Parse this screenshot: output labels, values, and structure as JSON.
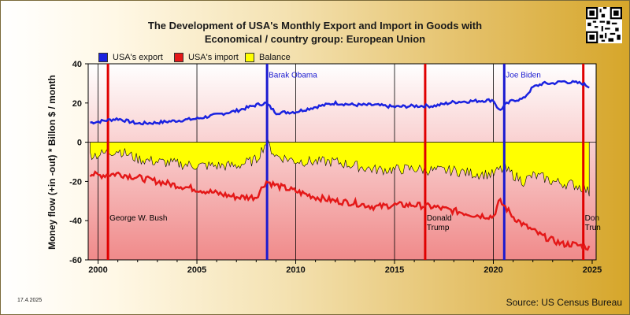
{
  "header": {
    "title_line1": "The Development of USA's Monthly Export and Import in Goods with",
    "title_line2": "Economical / country group: European Union"
  },
  "footer": {
    "date": "17.4.2025",
    "source": "Source: US Census Bureau"
  },
  "colors": {
    "export": "#1a22e0",
    "import": "#e41818",
    "balance": "#ffff00",
    "president_line": "#e00000",
    "president_line_obama": "#1a1ad0"
  },
  "chart_data": {
    "type": "line",
    "ylabel": "Money flow (+in -out) * Billon $ / month",
    "xlim": [
      1999.5,
      2025.2
    ],
    "ylim": [
      -60,
      40
    ],
    "x_ticks": [
      2000,
      2005,
      2010,
      2015,
      2020,
      2025
    ],
    "y_ticks": [
      -60,
      -40,
      -20,
      0,
      20,
      40
    ],
    "x_tick_labels": [
      "2000",
      "2005",
      "2010",
      "2015",
      "2020",
      "2025"
    ],
    "y_tick_labels": [
      "-60",
      "-40",
      "-20",
      "0",
      "20",
      "40"
    ],
    "grid": "vertical lines at 2000, 2005, 2010, 2015, 2020",
    "legend_position": "top-left",
    "legend": [
      {
        "label": "USA's export",
        "color_key": "export"
      },
      {
        "label": "USA's import",
        "color_key": "import"
      },
      {
        "label": "Balance",
        "color_key": "balance"
      }
    ],
    "series": [
      {
        "name": "USA's export",
        "x": [
          1999.6,
          2000,
          2001,
          2002,
          2003,
          2004,
          2005,
          2006,
          2007,
          2008,
          2008.5,
          2009,
          2010,
          2011,
          2012,
          2013,
          2014,
          2015,
          2016,
          2017,
          2018,
          2019,
          2020,
          2020.3,
          2020.6,
          2021,
          2021.5,
          2022,
          2022.5,
          2023,
          2023.5,
          2024,
          2024.5,
          2024.9
        ],
        "y": [
          10,
          10.5,
          12,
          9.5,
          10,
          11,
          12,
          14,
          16,
          19,
          20,
          15,
          15.5,
          18,
          20,
          19,
          19,
          18,
          18.5,
          18.5,
          20.5,
          21,
          21.5,
          16,
          19,
          21.5,
          22,
          28,
          30,
          30,
          31,
          30.5,
          30,
          28
        ]
      },
      {
        "name": "USA's import",
        "x": [
          1999.6,
          2000,
          2001,
          2002,
          2003,
          2004,
          2005,
          2006,
          2007,
          2008,
          2008.5,
          2009,
          2010,
          2011,
          2012,
          2013,
          2014,
          2015,
          2016,
          2017,
          2018,
          2019,
          2020,
          2020.3,
          2020.6,
          2021,
          2021.5,
          2022,
          2022.5,
          2023,
          2023.5,
          2024,
          2024.5,
          2024.9
        ],
        "y": [
          -16,
          -17,
          -16,
          -18,
          -20,
          -22,
          -24,
          -26,
          -28,
          -28,
          -20,
          -22,
          -25,
          -28,
          -30,
          -31,
          -33,
          -32,
          -32,
          -33,
          -35,
          -37,
          -38,
          -30,
          -33,
          -38,
          -42,
          -45,
          -48,
          -50,
          -52,
          -52,
          -53,
          -54
        ]
      },
      {
        "name": "Balance",
        "x": [
          1999.6,
          2000,
          2001,
          2002,
          2003,
          2004,
          2005,
          2006,
          2007,
          2008,
          2008.5,
          2009,
          2010,
          2011,
          2012,
          2013,
          2014,
          2015,
          2016,
          2017,
          2018,
          2019,
          2020,
          2020.3,
          2020.6,
          2021,
          2021.5,
          2022,
          2022.5,
          2023,
          2023.5,
          2024,
          2024.5,
          2024.9
        ],
        "y": [
          -6,
          -6.5,
          -4,
          -8.5,
          -10,
          -11,
          -12,
          -12,
          -12,
          -9,
          0,
          -7,
          -9.5,
          -10,
          -10,
          -12,
          -14,
          -14,
          -13.5,
          -14.5,
          -14.5,
          -16,
          -16.5,
          -14,
          -14,
          -16.5,
          -20,
          -17,
          -18,
          -20,
          -21,
          -21.5,
          -23,
          -26
        ]
      }
    ],
    "annotations": [
      {
        "label": "George W. Bush",
        "x": 2000.5,
        "color_key": "president_line",
        "text_color": "#000000",
        "y_text": -40,
        "lines": [
          "George W. Bush"
        ]
      },
      {
        "label": "Barak Obama",
        "x": 2008.55,
        "color_key": "president_line_obama",
        "text_color": "#1a1ad0",
        "y_text": 33,
        "lines": [
          "Barak Obama"
        ]
      },
      {
        "label": "Donald Trump",
        "x": 2016.55,
        "color_key": "president_line",
        "text_color": "#000000",
        "y_text": -40,
        "lines": [
          "Donald",
          "Trump"
        ]
      },
      {
        "label": "Joe Biden",
        "x": 2020.55,
        "color_key": "president_line_obama",
        "text_color": "#1a1ad0",
        "y_text": 33,
        "lines": [
          "Joe Biden"
        ]
      },
      {
        "label": "Donald Trump",
        "x": 2024.55,
        "color_key": "president_line",
        "text_color": "#000000",
        "y_text": -40,
        "lines": [
          "Don",
          "Trun"
        ]
      }
    ]
  }
}
